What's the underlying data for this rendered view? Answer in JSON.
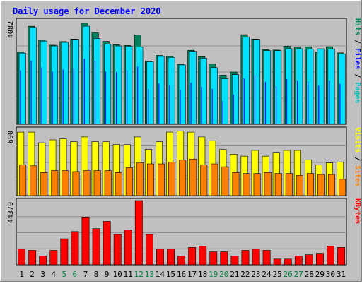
{
  "title": "Daily usage for December 2020",
  "colors": {
    "background": "#c0c0c0",
    "title": "#0000ff",
    "hits": "#00805c",
    "files": "#0000ff",
    "pages": "#00c0c0",
    "pages_fill": "#00e0ff",
    "visits": "#ffff00",
    "sites": "#ff8000",
    "kbytes": "#ff0000",
    "weekend_label": "#008040",
    "weekday_label": "#000000"
  },
  "chart_data": [
    {
      "type": "bar",
      "panel": "hits_files_pages",
      "y_label": "4082",
      "ylim": [
        0,
        4082
      ],
      "right_labels": [
        {
          "text": "Pages",
          "color_key": "pages"
        },
        {
          "text": " / ",
          "color_key": "weekday_label"
        },
        {
          "text": "Files",
          "color_key": "files"
        },
        {
          "text": " / ",
          "color_key": "weekday_label"
        },
        {
          "text": "Hits",
          "color_key": "hits"
        }
      ],
      "categories": [
        "1",
        "2",
        "3",
        "4",
        "5",
        "6",
        "7",
        "8",
        "9",
        "10",
        "11",
        "12",
        "13",
        "14",
        "15",
        "16",
        "17",
        "18",
        "19",
        "20",
        "21",
        "22",
        "23",
        "24",
        "25",
        "26",
        "27",
        "28",
        "29",
        "30",
        "31"
      ],
      "weekend_days": [
        "5",
        "6",
        "12",
        "13",
        "19",
        "20",
        "26",
        "27"
      ],
      "series": [
        {
          "name": "Hits",
          "color_key": "hits",
          "values": [
            2830,
            3830,
            3300,
            3090,
            3230,
            3330,
            3950,
            3570,
            3240,
            3110,
            3080,
            3490,
            2470,
            2690,
            2650,
            2350,
            2890,
            2640,
            2360,
            1920,
            2040,
            3500,
            3330,
            2920,
            2900,
            3050,
            3020,
            3020,
            2820,
            3030,
            2790
          ]
        },
        {
          "name": "Files",
          "color_key": "files",
          "values": [
            2110,
            2480,
            2220,
            2060,
            2140,
            2180,
            2560,
            2480,
            2060,
            2040,
            2110,
            2250,
            1380,
            1590,
            1530,
            1340,
            1630,
            1460,
            1380,
            900,
            1160,
            1790,
            1920,
            1660,
            1490,
            1770,
            1710,
            1670,
            1510,
            1710,
            1580
          ]
        },
        {
          "name": "Pages",
          "color_key": "pages_fill",
          "values": [
            2780,
            3780,
            3250,
            3060,
            3200,
            3320,
            3830,
            3350,
            3130,
            3060,
            3050,
            3020,
            2440,
            2650,
            2610,
            2320,
            2850,
            2580,
            2210,
            1780,
            1940,
            3400,
            3320,
            2880,
            2880,
            2950,
            2950,
            2940,
            2950,
            2940,
            2750
          ]
        }
      ]
    },
    {
      "type": "bar",
      "panel": "visits_sites",
      "y_label": "690",
      "ylim": [
        0,
        690
      ],
      "right_labels": [
        {
          "text": "Sites",
          "color_key": "sites"
        },
        {
          "text": " / ",
          "color_key": "weekday_label"
        },
        {
          "text": "Visits",
          "color_key": "visits"
        }
      ],
      "categories": [
        "1",
        "2",
        "3",
        "4",
        "5",
        "6",
        "7",
        "8",
        "9",
        "10",
        "11",
        "12",
        "13",
        "14",
        "15",
        "16",
        "17",
        "18",
        "19",
        "20",
        "21",
        "22",
        "23",
        "24",
        "25",
        "26",
        "27",
        "28",
        "29",
        "30",
        "31"
      ],
      "series": [
        {
          "name": "Visits",
          "color_key": "visits",
          "values": [
            660,
            660,
            550,
            580,
            590,
            560,
            610,
            560,
            560,
            530,
            530,
            610,
            480,
            560,
            660,
            670,
            660,
            610,
            570,
            480,
            430,
            410,
            470,
            410,
            450,
            470,
            470,
            370,
            320,
            340,
            350
          ]
        },
        {
          "name": "Sites",
          "color_key": "sites",
          "values": [
            320,
            310,
            240,
            260,
            260,
            250,
            260,
            260,
            260,
            240,
            290,
            340,
            330,
            330,
            350,
            370,
            380,
            320,
            330,
            300,
            240,
            230,
            230,
            240,
            230,
            230,
            210,
            230,
            220,
            220,
            170
          ]
        }
      ]
    },
    {
      "type": "bar",
      "panel": "kbytes",
      "y_label": "44379",
      "ylim": [
        0,
        44379
      ],
      "right_labels": [
        {
          "text": "KBytes",
          "color_key": "kbytes"
        }
      ],
      "categories": [
        "1",
        "2",
        "3",
        "4",
        "5",
        "6",
        "7",
        "8",
        "9",
        "10",
        "11",
        "12",
        "13",
        "14",
        "15",
        "16",
        "17",
        "18",
        "19",
        "20",
        "21",
        "22",
        "23",
        "24",
        "25",
        "26",
        "27",
        "28",
        "29",
        "30",
        "31"
      ],
      "series": [
        {
          "name": "KBytes",
          "color_key": "kbytes",
          "values": [
            11000,
            10000,
            6000,
            10000,
            18000,
            23000,
            33000,
            25000,
            30000,
            21000,
            24000,
            44379,
            21000,
            11000,
            11000,
            6000,
            12000,
            13000,
            9000,
            9000,
            6000,
            10000,
            11000,
            10000,
            4000,
            4000,
            6000,
            7000,
            8000,
            13000,
            12000
          ]
        }
      ]
    }
  ]
}
